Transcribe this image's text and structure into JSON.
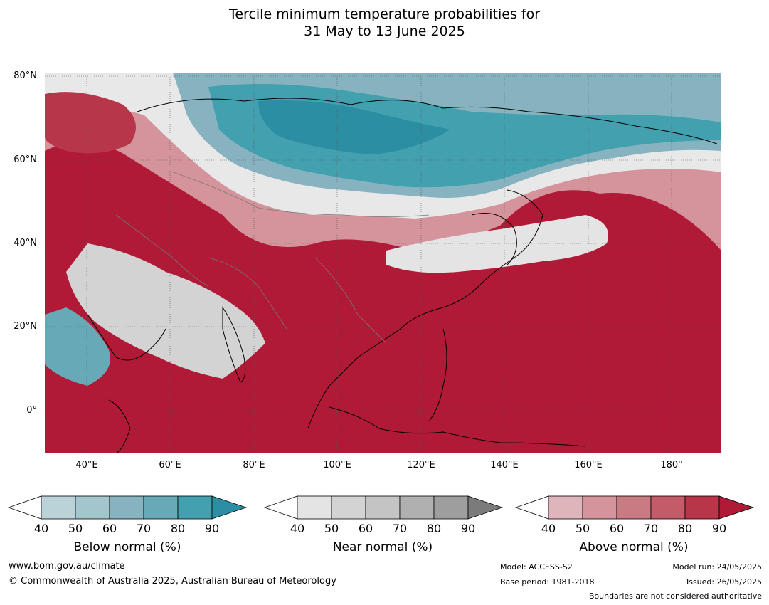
{
  "title": {
    "line1": "Tercile minimum temperature probabilities for",
    "line2": "31 May to 13 June 2025"
  },
  "map": {
    "lat_labels": [
      "80°N",
      "60°N",
      "40°N",
      "20°N",
      "0°"
    ],
    "lon_labels": [
      "40°E",
      "60°E",
      "80°E",
      "100°E",
      "120°E",
      "140°E",
      "160°E",
      "180°"
    ],
    "extent": {
      "lon_min": 30,
      "lon_max": 192,
      "lat_min": -10,
      "lat_max": 81
    }
  },
  "colorbars": [
    {
      "name": "below",
      "label": "Below normal (%)",
      "ticks": [
        "40",
        "50",
        "60",
        "70",
        "80",
        "90"
      ],
      "colors": [
        "#ffffff",
        "#bcd2d9",
        "#a3c5cc",
        "#86b3bf",
        "#67a9b6",
        "#42a0af",
        "#2c8ea3"
      ]
    },
    {
      "name": "near",
      "label": "Near normal (%)",
      "ticks": [
        "40",
        "50",
        "60",
        "70",
        "80",
        "90"
      ],
      "colors": [
        "#ffffff",
        "#e4e4e4",
        "#d3d3d3",
        "#c4c4c4",
        "#b0b0b0",
        "#9e9e9e",
        "#7b7b7b"
      ]
    },
    {
      "name": "above",
      "label": "Above normal (%)",
      "ticks": [
        "40",
        "50",
        "60",
        "70",
        "80",
        "90"
      ],
      "colors": [
        "#ffffff",
        "#dfb5bc",
        "#d5949c",
        "#c97b83",
        "#c45b68",
        "#b8364a",
        "#b01a36"
      ]
    }
  ],
  "footer": {
    "website": "www.bom.gov.au/climate",
    "copyright": "© Commonwealth of Australia 2025, Australian Bureau of Meteorology",
    "model": "Model: ACCESS-S2",
    "base_period": "Base period: 1981-2018",
    "model_run": "Model run: 24/05/2025",
    "issued": "Issued: 26/05/2025",
    "disclaimer": "Boundaries are not considered authoritative"
  }
}
